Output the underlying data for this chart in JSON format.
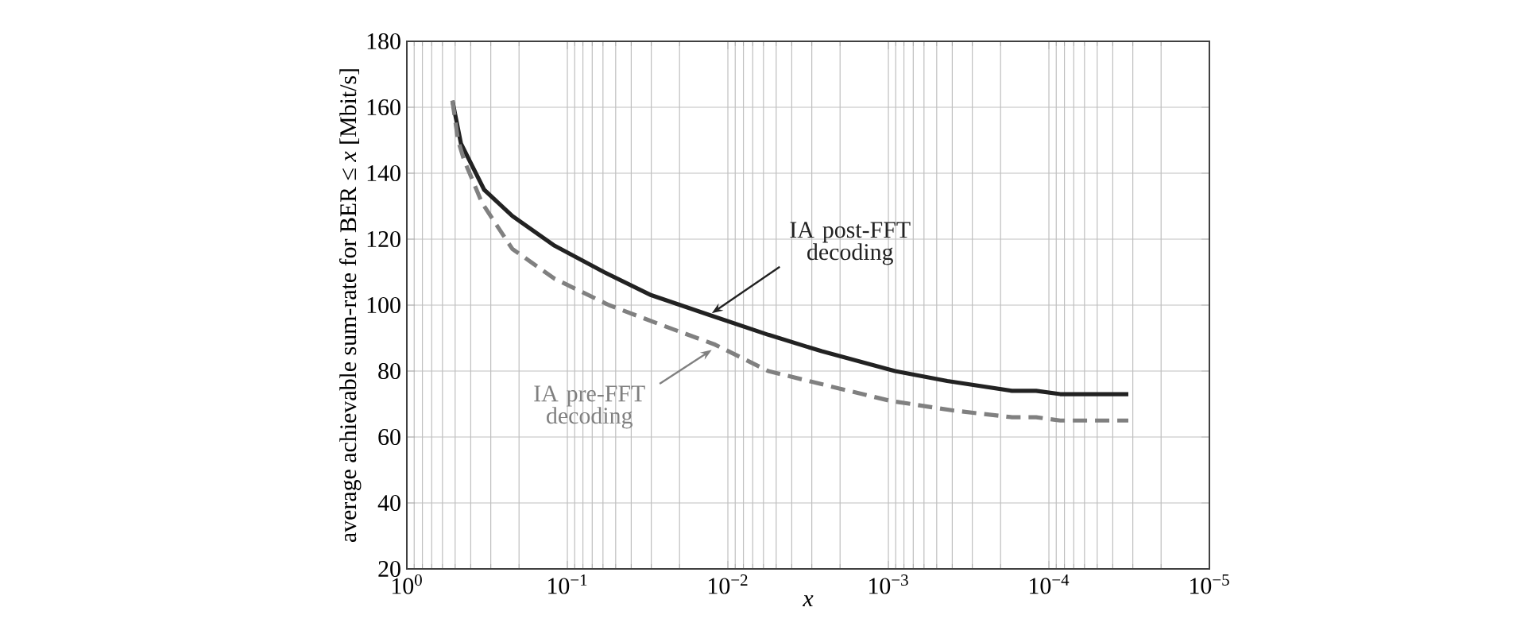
{
  "chart_data": {
    "type": "line",
    "xlabel": "*x*",
    "ylabel": "average achievable sum-rate for BER ≤ *x* [Mbit/s]",
    "log": "x",
    "grid": true,
    "marker": "none",
    "xlim": [
      1,
      1e-05
    ],
    "ylim": [
      20,
      180
    ],
    "xticks": [
      {
        "value": 1,
        "label": "10$^{0}$"
      },
      {
        "value": 0.1,
        "label": "10$^{−1}$"
      },
      {
        "value": 0.01,
        "label": "10$^{−2}$"
      },
      {
        "value": 0.001,
        "label": "10$^{−3}$"
      },
      {
        "value": 0.0001,
        "label": "10$^{−4}$"
      },
      {
        "value": 1e-05,
        "label": "10$^{−5}$"
      }
    ],
    "yticks": [
      20,
      40,
      60,
      80,
      100,
      120,
      140,
      160,
      180
    ],
    "series": [
      {
        "color": "#222222",
        "line_style": "solid",
        "x": [
          0.52,
          0.46,
          0.33,
          0.22,
          0.12,
          0.059,
          0.03,
          0.013,
          0.0056,
          0.0026,
          0.00091,
          0.00043,
          0.00017,
          0.00012,
          8.5e-05,
          3.2e-05
        ],
        "values": [
          162,
          149,
          135,
          127,
          118,
          110,
          103,
          97,
          91,
          86,
          80,
          77,
          74,
          74,
          73,
          73
        ]
      },
      {
        "color": "#808080",
        "line_style": "dashed",
        "x": [
          0.52,
          0.48,
          0.44,
          0.34,
          0.22,
          0.12,
          0.055,
          0.026,
          0.012,
          0.0056,
          0.0026,
          0.00098,
          0.00039,
          0.00017,
          0.00012,
          8.5e-05,
          3.2e-05
        ],
        "values": [
          162,
          150,
          144,
          131,
          117,
          108,
          100,
          94,
          88,
          80,
          76,
          71,
          68,
          66,
          66,
          65,
          65
        ]
      }
    ],
    "annotations": [
      {
        "text": "IA post-FFT decoding",
        "x": 0.0126,
        "y": 97.5
      },
      {
        "text": "IA pre-FFT decoding",
        "x": 0.0126,
        "y": 86.4
      }
    ]
  }
}
